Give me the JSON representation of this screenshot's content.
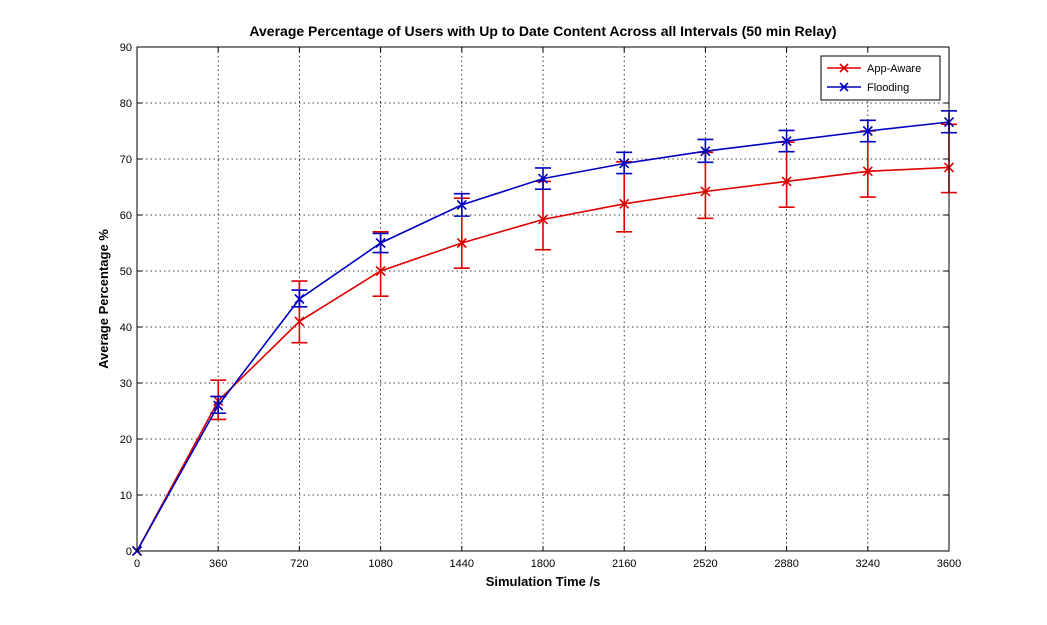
{
  "chart_data": {
    "type": "line",
    "title": "Average Percentage of Users with Up to Date Content Across all Intervals (50 min Relay)",
    "xlabel": "Simulation Time /s",
    "ylabel": "Average Percentage %",
    "xlim": [
      0,
      3600
    ],
    "ylim": [
      0,
      90
    ],
    "xticks": [
      0,
      360,
      720,
      1080,
      1440,
      1800,
      2160,
      2520,
      2880,
      3240,
      3600
    ],
    "yticks": [
      0,
      10,
      20,
      30,
      40,
      50,
      60,
      70,
      80,
      90
    ],
    "grid": true,
    "legend_position": "top-right",
    "x": [
      0,
      360,
      720,
      1080,
      1440,
      1800,
      2160,
      2520,
      2880,
      3240,
      3600
    ],
    "series": [
      {
        "name": "App-Aware",
        "color": "#e00000",
        "marker": "x",
        "values": [
          0,
          26.8,
          41.0,
          50.0,
          55.0,
          59.2,
          62.0,
          64.2,
          66.0,
          67.8,
          68.5
        ],
        "error_low": [
          0,
          23.5,
          37.2,
          45.5,
          50.5,
          53.8,
          57.0,
          59.4,
          61.4,
          63.2,
          64.0
        ],
        "error_high": [
          0,
          30.5,
          48.2,
          57.0,
          63.0,
          66.0,
          69.5,
          71.2,
          73.0,
          75.0,
          76.2
        ]
      },
      {
        "name": "Flooding",
        "color": "#0000c0",
        "marker": "x",
        "values": [
          0,
          26.0,
          45.0,
          55.0,
          61.8,
          66.5,
          69.2,
          71.4,
          73.2,
          75.0,
          76.6
        ],
        "error_low": [
          0,
          24.6,
          43.6,
          53.3,
          59.8,
          64.6,
          67.4,
          69.4,
          71.3,
          73.1,
          74.7
        ],
        "error_high": [
          0,
          27.6,
          46.6,
          56.7,
          63.8,
          68.4,
          71.2,
          73.5,
          75.1,
          76.9,
          78.6
        ]
      }
    ]
  }
}
